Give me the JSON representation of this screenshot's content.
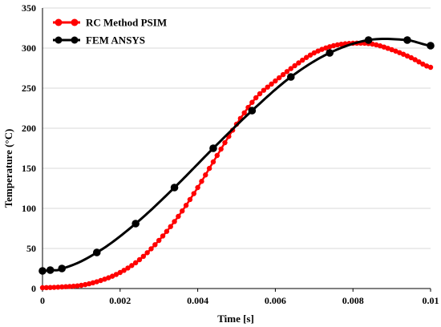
{
  "chart_data": {
    "type": "line",
    "title": "",
    "xlabel": "Time [s]",
    "ylabel": "Temperature (°C)",
    "xlim": [
      0,
      0.01
    ],
    "ylim": [
      0,
      350
    ],
    "xticks": [
      0,
      0.002,
      0.004,
      0.006,
      0.008,
      0.01
    ],
    "xtick_labels": [
      "0",
      "0.002",
      "0.004",
      "0.006",
      "0.008",
      "0.01"
    ],
    "yticks": [
      0,
      50,
      100,
      150,
      200,
      250,
      300,
      350
    ],
    "ytick_labels": [
      "0",
      "50",
      "100",
      "150",
      "200",
      "250",
      "300",
      "350"
    ],
    "grid": "horizontal",
    "legend_position": "top-left",
    "series": [
      {
        "name": "RC Method PSIM",
        "color": "#ff0000",
        "marker": "dense-dots",
        "x": [
          0,
          0.0005,
          0.001,
          0.0015,
          0.002,
          0.0025,
          0.003,
          0.0035,
          0.004,
          0.0045,
          0.005,
          0.0055,
          0.006,
          0.0065,
          0.007,
          0.0075,
          0.008,
          0.0085,
          0.009,
          0.0095,
          0.01
        ],
        "y": [
          1,
          2,
          4,
          10,
          20,
          36,
          60,
          90,
          126,
          166,
          205,
          238,
          259,
          278,
          294,
          303,
          306,
          305,
          298,
          288,
          276
        ]
      },
      {
        "name": "FEM ANSYS",
        "color": "#000000",
        "marker": "circle",
        "x": [
          0,
          0.0002,
          0.0005,
          0.0014,
          0.0024,
          0.0034,
          0.0044,
          0.0054,
          0.0064,
          0.0074,
          0.0084,
          0.0094,
          0.01
        ],
        "y": [
          22,
          23,
          25,
          45,
          81,
          126,
          175,
          222,
          264,
          294,
          310,
          310,
          303
        ]
      }
    ]
  }
}
